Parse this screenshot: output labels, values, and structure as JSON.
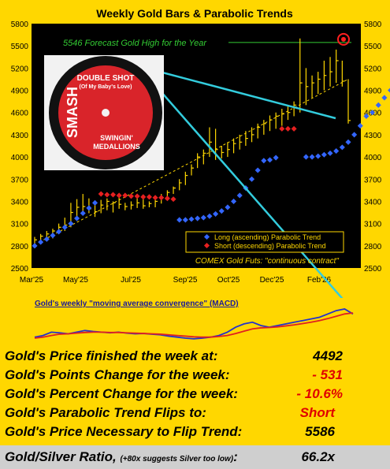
{
  "chart_data": [
    {
      "type": "bar",
      "title": "Weekly Gold Bars & Parabolic Trends",
      "ylim": [
        2500,
        5800
      ],
      "y_ticks": [
        "5800",
        "5500",
        "5200",
        "4900",
        "4600",
        "4300",
        "4000",
        "3700",
        "3400",
        "3100",
        "2800",
        "2500"
      ],
      "x_ticks": [
        "Mar'25",
        "May'25",
        "Jul'25",
        "Sep'25",
        "Oct'25",
        "Dec'25",
        "Feb'26"
      ],
      "forecast_label": "5546 Forecast Gold High for the Year",
      "forecast_value": 5546,
      "legend": [
        "Long (ascending) Parabolic Trend",
        "Short (descending) Parabolic Trend"
      ],
      "source_note": "COMEX Gold Futs: \"continuous contract\"",
      "colors": {
        "bars": "#ffd700",
        "long": "#3366ff",
        "short": "#e62020",
        "trendline": "#33ccdd",
        "forecast": "#33cc33",
        "background": "#000000"
      },
      "bars": [
        {
          "h": 2920,
          "l": 2830,
          "c": 2880
        },
        {
          "h": 2960,
          "l": 2860,
          "c": 2930
        },
        {
          "h": 3000,
          "l": 2890,
          "c": 2960
        },
        {
          "h": 3030,
          "l": 2900,
          "c": 3000
        },
        {
          "h": 3100,
          "l": 2960,
          "c": 3050
        },
        {
          "h": 3180,
          "l": 3000,
          "c": 3080
        },
        {
          "h": 3380,
          "l": 3050,
          "c": 3250
        },
        {
          "h": 3430,
          "l": 3180,
          "c": 3320
        },
        {
          "h": 3500,
          "l": 3260,
          "c": 3330
        },
        {
          "h": 3440,
          "l": 3240,
          "c": 3300
        },
        {
          "h": 3380,
          "l": 3190,
          "c": 3260
        },
        {
          "h": 3420,
          "l": 3240,
          "c": 3350
        },
        {
          "h": 3440,
          "l": 3280,
          "c": 3400
        },
        {
          "h": 3400,
          "l": 3250,
          "c": 3380
        },
        {
          "h": 3450,
          "l": 3300,
          "c": 3360
        },
        {
          "h": 3380,
          "l": 3280,
          "c": 3330
        },
        {
          "h": 3400,
          "l": 3290,
          "c": 3350
        },
        {
          "h": 3450,
          "l": 3310,
          "c": 3380
        },
        {
          "h": 3430,
          "l": 3300,
          "c": 3340
        },
        {
          "h": 3400,
          "l": 3320,
          "c": 3370
        },
        {
          "h": 3450,
          "l": 3320,
          "c": 3400
        },
        {
          "h": 3500,
          "l": 3370,
          "c": 3450
        },
        {
          "h": 3550,
          "l": 3420,
          "c": 3520
        },
        {
          "h": 3600,
          "l": 3500,
          "c": 3580
        },
        {
          "h": 3700,
          "l": 3550,
          "c": 3650
        },
        {
          "h": 3800,
          "l": 3620,
          "c": 3750
        },
        {
          "h": 3900,
          "l": 3750,
          "c": 3850
        },
        {
          "h": 4050,
          "l": 3850,
          "c": 4000
        },
        {
          "h": 4100,
          "l": 3900,
          "c": 4050
        },
        {
          "h": 4400,
          "l": 4000,
          "c": 4200
        },
        {
          "h": 4380,
          "l": 3960,
          "c": 4100
        },
        {
          "h": 4150,
          "l": 3980,
          "c": 4060
        },
        {
          "h": 4200,
          "l": 4000,
          "c": 4100
        },
        {
          "h": 4250,
          "l": 4050,
          "c": 4180
        },
        {
          "h": 4300,
          "l": 4100,
          "c": 4200
        },
        {
          "h": 4350,
          "l": 4150,
          "c": 4250
        },
        {
          "h": 4400,
          "l": 4200,
          "c": 4300
        },
        {
          "h": 4450,
          "l": 4250,
          "c": 4400
        },
        {
          "h": 4500,
          "l": 4300,
          "c": 4450
        },
        {
          "h": 4560,
          "l": 4350,
          "c": 4500
        },
        {
          "h": 4600,
          "l": 4380,
          "c": 4550
        },
        {
          "h": 4650,
          "l": 4420,
          "c": 4580
        },
        {
          "h": 4700,
          "l": 4500,
          "c": 4600
        },
        {
          "h": 4750,
          "l": 4550,
          "c": 4700
        },
        {
          "h": 5600,
          "l": 4600,
          "c": 5000
        },
        {
          "h": 5200,
          "l": 4700,
          "c": 4950
        },
        {
          "h": 5100,
          "l": 4800,
          "c": 5000
        },
        {
          "h": 5150,
          "l": 4850,
          "c": 5050
        },
        {
          "h": 5300,
          "l": 4900,
          "c": 5100
        },
        {
          "h": 5350,
          "l": 4950,
          "c": 5150
        },
        {
          "h": 5450,
          "l": 5000,
          "c": 5300
        },
        {
          "h": 5300,
          "l": 4950,
          "c": 5023
        },
        {
          "h": 5050,
          "l": 4450,
          "c": 4492
        }
      ],
      "long_dots": [
        [
          0,
          2800
        ],
        [
          1,
          2850
        ],
        [
          2,
          2890
        ],
        [
          3,
          2940
        ],
        [
          4,
          2990
        ],
        [
          5,
          3050
        ],
        [
          6,
          3100
        ],
        [
          7,
          3170
        ],
        [
          8,
          3240
        ],
        [
          9,
          3310
        ],
        [
          10,
          3380
        ],
        [
          24,
          3150
        ],
        [
          25,
          3150
        ],
        [
          26,
          3160
        ],
        [
          27,
          3170
        ],
        [
          28,
          3180
        ],
        [
          29,
          3200
        ],
        [
          30,
          3230
        ],
        [
          31,
          3270
        ],
        [
          32,
          3320
        ],
        [
          33,
          3400
        ],
        [
          34,
          3480
        ],
        [
          35,
          3580
        ],
        [
          36,
          3700
        ],
        [
          37,
          3820
        ],
        [
          38,
          3950
        ],
        [
          39,
          3960
        ],
        [
          40,
          3990
        ],
        [
          45,
          4000
        ],
        [
          46,
          4000
        ],
        [
          47,
          4010
        ],
        [
          48,
          4030
        ],
        [
          49,
          4050
        ],
        [
          50,
          4080
        ],
        [
          51,
          4130
        ],
        [
          52,
          4200
        ],
        [
          53,
          4300
        ],
        [
          54,
          4420
        ],
        [
          55,
          4550
        ],
        [
          56,
          4600
        ],
        [
          57,
          4700
        ],
        [
          58,
          4800
        ],
        [
          59,
          4900
        ],
        [
          60,
          5000
        ]
      ],
      "short_dots": [
        [
          11,
          3500
        ],
        [
          12,
          3490
        ],
        [
          13,
          3490
        ],
        [
          14,
          3480
        ],
        [
          15,
          3480
        ],
        [
          16,
          3470
        ],
        [
          17,
          3470
        ],
        [
          18,
          3460
        ],
        [
          19,
          3460
        ],
        [
          20,
          3450
        ],
        [
          21,
          3450
        ],
        [
          22,
          3440
        ],
        [
          23,
          3430
        ],
        [
          41,
          4380
        ],
        [
          42,
          4380
        ],
        [
          43,
          4380
        ]
      ]
    },
    {
      "type": "line",
      "title": "Gold's weekly \"moving average convergence\" (MACD)",
      "series": [
        {
          "values": [
            0.15,
            0.2,
            0.3,
            0.28,
            0.25,
            0.3,
            0.35,
            0.32,
            0.3,
            0.28,
            0.3,
            0.27,
            0.25,
            0.26,
            0.24,
            0.22,
            0.18,
            0.15,
            0.12,
            0.1,
            0.12,
            0.15,
            0.2,
            0.3,
            0.45,
            0.55,
            0.6,
            0.5,
            0.45,
            0.5,
            0.55,
            0.6,
            0.65,
            0.7,
            0.75,
            0.85,
            0.95,
            1.0,
            0.85
          ]
        },
        {
          "values": [
            0.12,
            0.15,
            0.2,
            0.24,
            0.25,
            0.27,
            0.29,
            0.3,
            0.3,
            0.29,
            0.29,
            0.28,
            0.27,
            0.26,
            0.25,
            0.24,
            0.22,
            0.2,
            0.18,
            0.16,
            0.15,
            0.15,
            0.17,
            0.2,
            0.26,
            0.33,
            0.4,
            0.43,
            0.44,
            0.46,
            0.49,
            0.52,
            0.56,
            0.6,
            0.65,
            0.71,
            0.78,
            0.85,
            0.88
          ]
        }
      ]
    }
  ],
  "record": {
    "line1": "DOUBLE SHOT",
    "line2": "(Of My Baby's Love)",
    "label_brand": "SMASH",
    "artist1": "SWINGIN'",
    "artist2": "MEDALLIONS"
  },
  "stats": [
    {
      "label": "Gold's Price finished the week at:",
      "value": "4492",
      "color": "#000000"
    },
    {
      "label": "Gold's Points Change for the week:",
      "value": "- 531",
      "color": "#e00000"
    },
    {
      "label": "Gold's Percent Change for the week:",
      "value": "- 10.6%",
      "color": "#e00000"
    },
    {
      "label": "Gold's Parabolic Trend Flips to:",
      "value": "Short",
      "color": "#e00000"
    },
    {
      "label": "Gold's Price Necessary to Flip Trend:",
      "value": "5586",
      "color": "#000000"
    }
  ],
  "ratio": {
    "label": "Gold/Silver Ratio,",
    "note": "(+80x suggests Silver too low)",
    "sep": ":",
    "value": "66.2x"
  }
}
